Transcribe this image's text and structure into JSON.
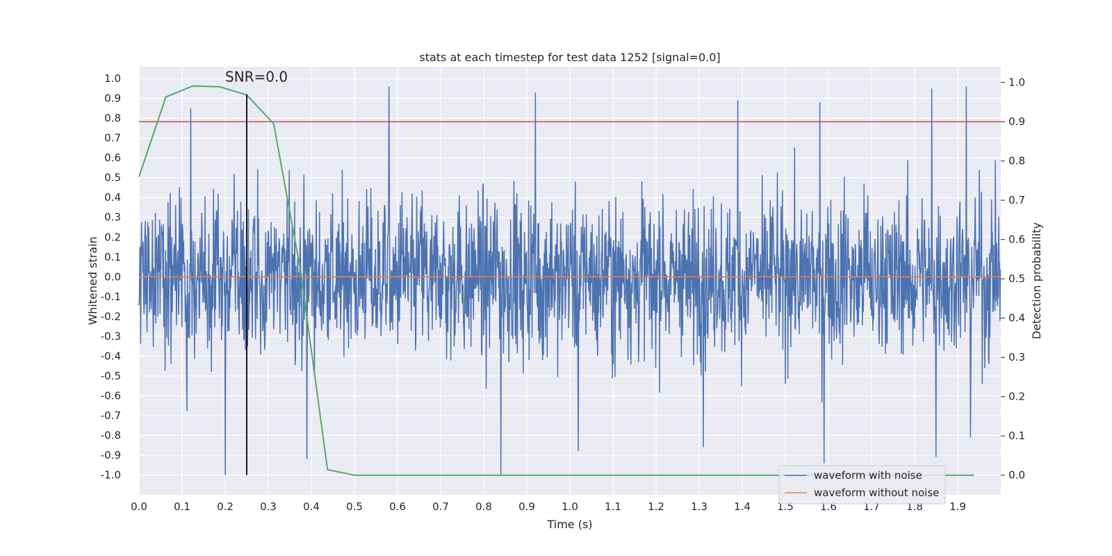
{
  "chart_data": {
    "type": "line",
    "title": "stats at each timestep for test data 1252 [signal=0.0]",
    "xlabel": "Time (s)",
    "ylabel": "Whitened strain",
    "y2label": "Detection probability",
    "xlim": [
      0.0,
      2.0
    ],
    "ylim": [
      -1.1,
      1.06
    ],
    "y2lim": [
      -0.05,
      1.04
    ],
    "xticks": [
      "0.0",
      "0.1",
      "0.2",
      "0.3",
      "0.4",
      "0.5",
      "0.6",
      "0.7",
      "0.8",
      "0.9",
      "1.0",
      "1.1",
      "1.2",
      "1.3",
      "1.4",
      "1.5",
      "1.6",
      "1.7",
      "1.8",
      "1.9"
    ],
    "yticks": [
      "1.0",
      "0.9",
      "0.8",
      "0.7",
      "0.6",
      "0.5",
      "0.4",
      "0.3",
      "0.2",
      "0.1",
      "0.0",
      "-0.1",
      "-0.2",
      "-0.3",
      "-0.4",
      "-0.5",
      "-0.6",
      "-0.7",
      "-0.8",
      "-0.9",
      "-1.0"
    ],
    "y2ticks": [
      "1.0",
      "0.9",
      "0.8",
      "0.7",
      "0.6",
      "0.5",
      "0.4",
      "0.3",
      "0.2",
      "0.1",
      "0.0"
    ],
    "series": [
      {
        "name": "waveform with noise",
        "axis": "left",
        "color": "#4c72b0",
        "kind": "noise",
        "n_samples": 2048,
        "range": [
          -1.0,
          0.96
        ],
        "peaks": [
          {
            "x": 0.12,
            "y": 0.85
          },
          {
            "x": 0.2,
            "y": -1.0
          },
          {
            "x": 0.58,
            "y": 0.96
          },
          {
            "x": 0.92,
            "y": 0.93
          },
          {
            "x": 0.84,
            "y": -1.0
          },
          {
            "x": 1.02,
            "y": -0.88
          },
          {
            "x": 1.31,
            "y": -0.86
          },
          {
            "x": 1.39,
            "y": 0.89
          },
          {
            "x": 1.58,
            "y": 0.88
          },
          {
            "x": 1.59,
            "y": -0.94
          },
          {
            "x": 1.84,
            "y": 0.95
          },
          {
            "x": 1.85,
            "y": -0.91
          },
          {
            "x": 1.92,
            "y": 0.96
          },
          {
            "x": 1.93,
            "y": -0.81
          },
          {
            "x": 0.39,
            "y": -0.92
          }
        ]
      },
      {
        "name": "waveform without noise",
        "axis": "left",
        "color": "#dd8452",
        "x": [
          0.0,
          2.0
        ],
        "y": [
          0.0,
          0.0
        ]
      },
      {
        "name": "detection probability",
        "axis": "right",
        "color": "#55a868",
        "x": [
          0.0,
          0.0625,
          0.125,
          0.1875,
          0.25,
          0.3125,
          0.375,
          0.4375,
          0.5,
          1.9375
        ],
        "y": [
          0.76,
          0.963,
          0.991,
          0.989,
          0.968,
          0.895,
          0.52,
          0.014,
          0.0,
          0.0
        ]
      }
    ],
    "hlines": [
      {
        "axis": "right",
        "y": 0.9,
        "color": "#c44e52"
      }
    ],
    "vlines": [
      {
        "x": 0.25,
        "ymin": -1.0,
        "ymax": 0.92,
        "color": "#000000"
      }
    ],
    "annotations": [
      {
        "text": "SNR=0.0",
        "x": 0.2,
        "y": 0.985
      }
    ],
    "legend": {
      "position": "lower-right",
      "entries": [
        {
          "label": "waveform with noise",
          "color": "#4c72b0"
        },
        {
          "label": "waveform without noise",
          "color": "#dd8452"
        }
      ]
    },
    "style": {
      "plot_background": "#eaeaf2",
      "grid": true,
      "grid_color": "#ffffff"
    }
  }
}
